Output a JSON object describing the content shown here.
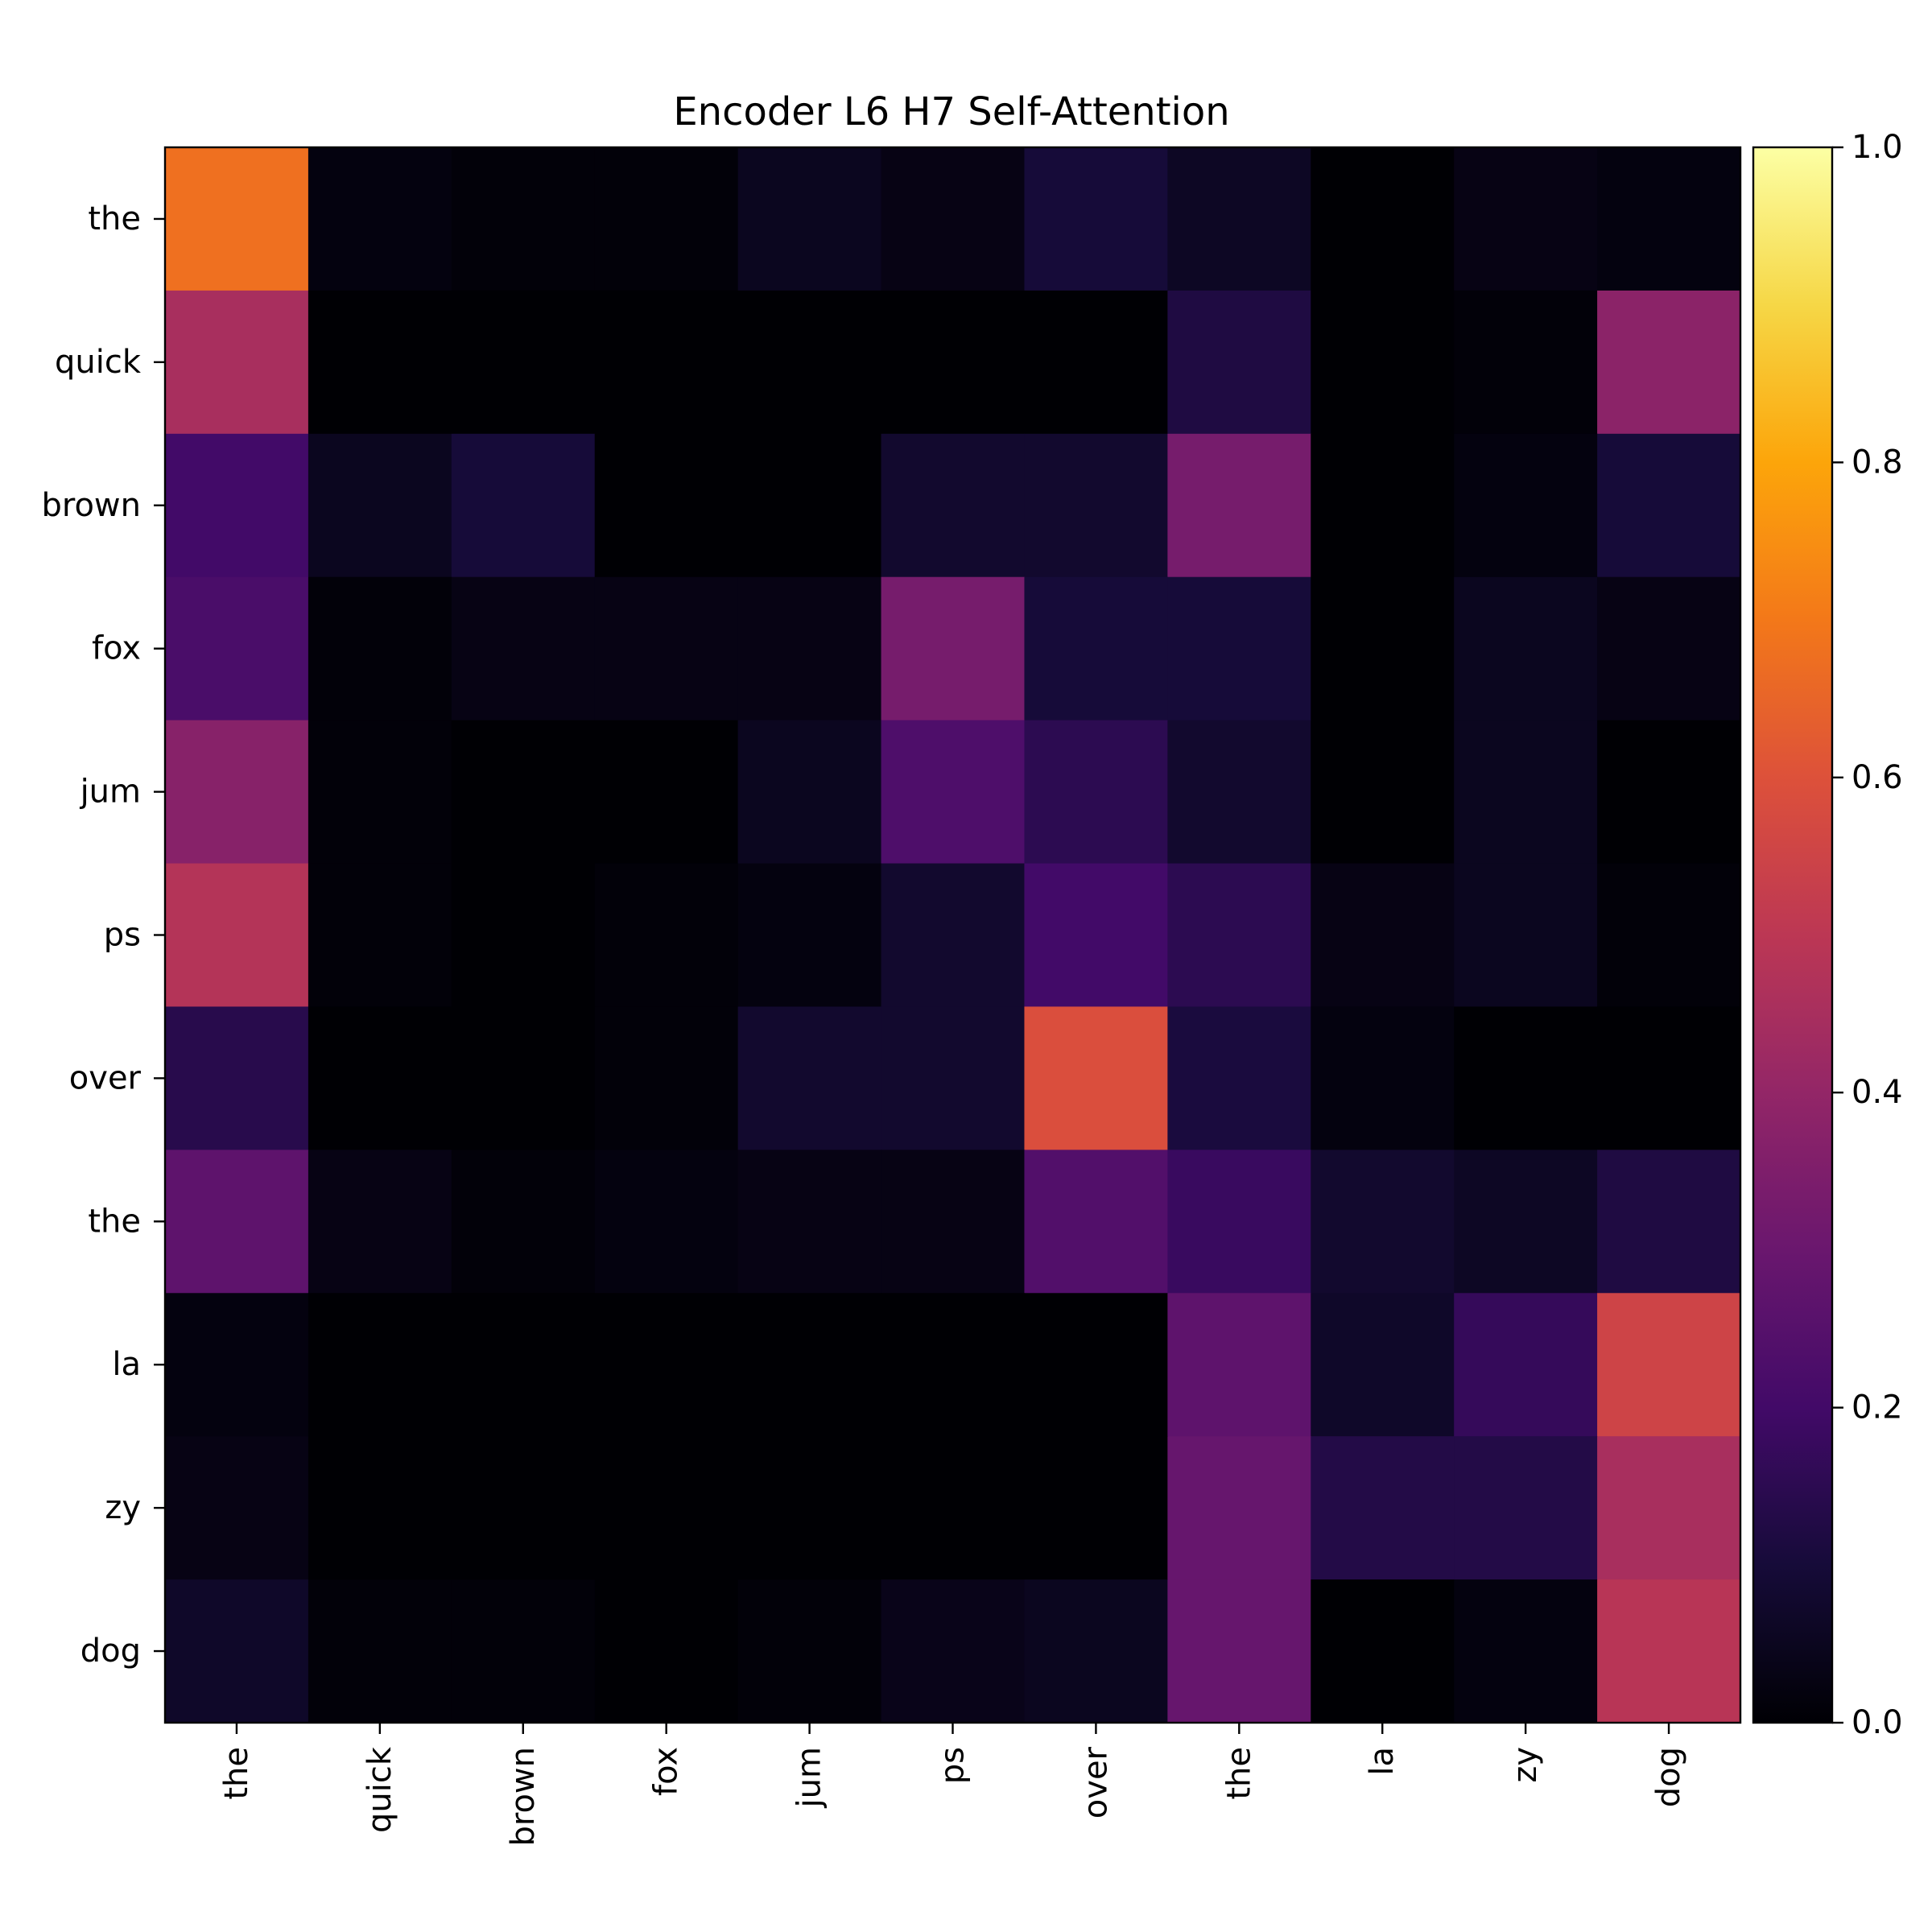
{
  "chart_data": {
    "type": "heatmap",
    "title": "Encoder L6 H7 Self-Attention",
    "xlabel": "",
    "ylabel": "",
    "x_labels": [
      "the",
      "quick",
      "brown",
      "fox",
      "jum",
      "ps",
      "over",
      "the",
      "la",
      "zy",
      "dog"
    ],
    "y_labels": [
      "the",
      "quick",
      "brown",
      "fox",
      "jum",
      "ps",
      "over",
      "the",
      "la",
      "zy",
      "dog"
    ],
    "values": [
      [
        0.68,
        0.02,
        0.01,
        0.01,
        0.05,
        0.03,
        0.1,
        0.06,
        0.0,
        0.03,
        0.02
      ],
      [
        0.45,
        0.0,
        0.0,
        0.0,
        0.0,
        0.0,
        0.0,
        0.12,
        0.0,
        0.01,
        0.38
      ],
      [
        0.2,
        0.05,
        0.1,
        0.0,
        0.0,
        0.08,
        0.08,
        0.33,
        0.0,
        0.02,
        0.1
      ],
      [
        0.22,
        0.01,
        0.03,
        0.03,
        0.03,
        0.33,
        0.1,
        0.1,
        0.0,
        0.05,
        0.03
      ],
      [
        0.37,
        0.01,
        0.0,
        0.0,
        0.05,
        0.23,
        0.15,
        0.08,
        0.0,
        0.05,
        0.0
      ],
      [
        0.48,
        0.01,
        0.0,
        0.01,
        0.02,
        0.08,
        0.2,
        0.15,
        0.03,
        0.05,
        0.01
      ],
      [
        0.14,
        0.0,
        0.0,
        0.01,
        0.08,
        0.08,
        0.59,
        0.11,
        0.02,
        0.0,
        0.0
      ],
      [
        0.27,
        0.03,
        0.01,
        0.02,
        0.03,
        0.03,
        0.24,
        0.18,
        0.08,
        0.06,
        0.12
      ],
      [
        0.02,
        0.0,
        0.0,
        0.0,
        0.0,
        0.0,
        0.0,
        0.27,
        0.07,
        0.17,
        0.55
      ],
      [
        0.03,
        0.0,
        0.0,
        0.0,
        0.0,
        0.0,
        0.0,
        0.29,
        0.13,
        0.13,
        0.45
      ],
      [
        0.07,
        0.01,
        0.01,
        0.0,
        0.01,
        0.04,
        0.05,
        0.29,
        0.0,
        0.02,
        0.49
      ]
    ],
    "colormap": "inferno",
    "vmin": 0.0,
    "vmax": 1.0,
    "colorbar_ticks": [
      "0.0",
      "0.2",
      "0.4",
      "0.6",
      "0.8",
      "1.0"
    ],
    "grid": false
  }
}
